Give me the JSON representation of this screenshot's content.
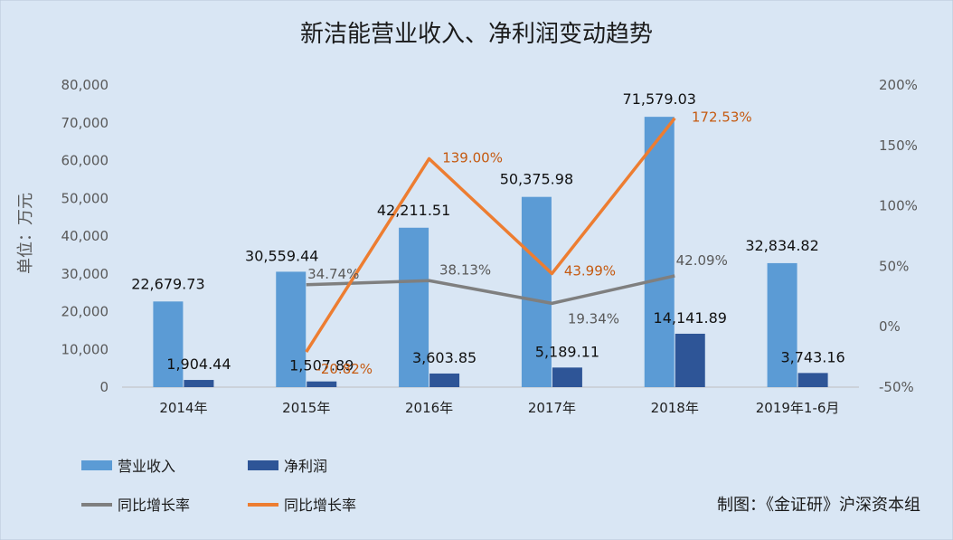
{
  "chart_data": {
    "type": "bar",
    "title": "新洁能营业收入、净利润变动趋势",
    "ylabel": "单位：万元",
    "categories": [
      "2014年",
      "2015年",
      "2016年",
      "2017年",
      "2018年",
      "2019年1-6月"
    ],
    "ylim": [
      0,
      80000
    ],
    "yticks": [
      "0",
      "10,000",
      "20,000",
      "30,000",
      "40,000",
      "50,000",
      "60,000",
      "70,000",
      "80,000"
    ],
    "y2lim": [
      -50,
      200
    ],
    "y2ticks": [
      "-50%",
      "0%",
      "50%",
      "100%",
      "150%",
      "200%"
    ],
    "series": [
      {
        "name": "营业收入",
        "kind": "bar",
        "color": "#5b9bd5",
        "values": [
          22679.73,
          30559.44,
          42211.51,
          50375.98,
          71579.03,
          32834.82
        ],
        "labels": [
          "22,679.73",
          "30,559.44",
          "42,211.51",
          "50,375.98",
          "71,579.03",
          "32,834.82"
        ]
      },
      {
        "name": "净利润",
        "kind": "bar",
        "color": "#2e5597",
        "values": [
          1904.44,
          1507.89,
          3603.85,
          5189.11,
          14141.89,
          3743.16
        ],
        "labels": [
          "1,904.44",
          "1,507.89",
          "3,603.85",
          "5,189.11",
          "14,141.89",
          "3,743.16"
        ]
      },
      {
        "name": "同比增长率",
        "kind": "line",
        "axis": "right",
        "color": "#7f7f7f",
        "values": [
          null,
          34.74,
          38.13,
          19.34,
          42.09,
          null
        ],
        "labels": [
          "",
          "34.74%",
          "38.13%",
          "19.34%",
          "42.09%",
          ""
        ]
      },
      {
        "name": "同比增长率",
        "kind": "line",
        "axis": "right",
        "color": "#ed7d31",
        "values": [
          null,
          -20.82,
          139.0,
          43.99,
          172.53,
          null
        ],
        "labels": [
          "",
          "-20.82%",
          "139.00%",
          "43.99%",
          "172.53%",
          ""
        ]
      }
    ],
    "legend_position": "bottom",
    "grid": false
  },
  "credit": "制图：《金证研》沪深资本组"
}
